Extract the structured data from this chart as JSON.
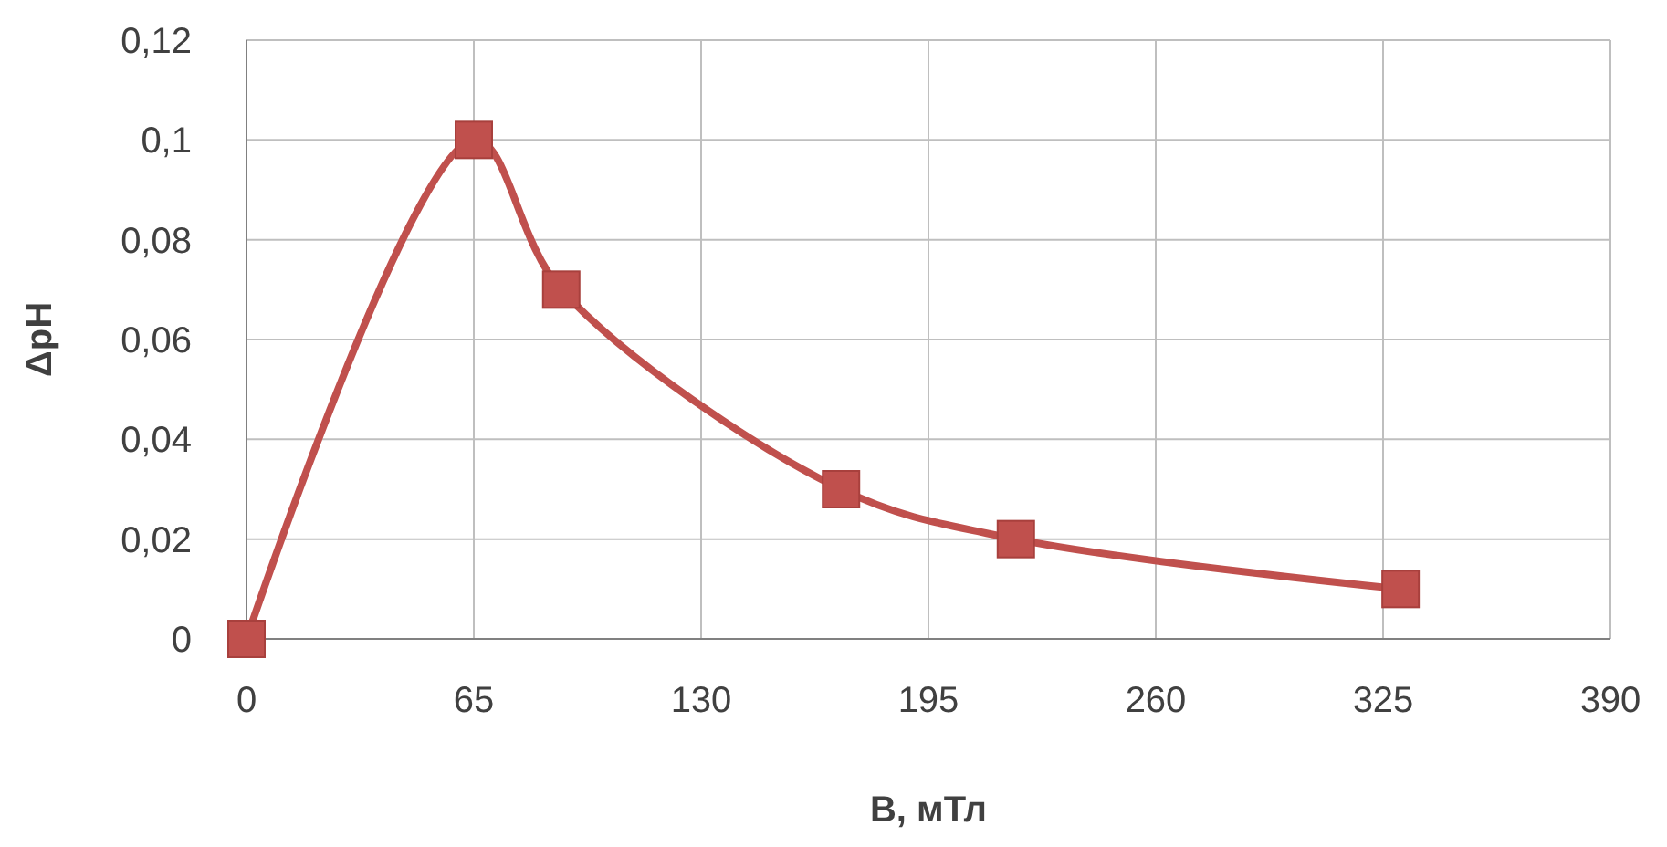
{
  "chart_data": {
    "type": "line",
    "xlabel": "B, мТл",
    "ylabel": "ΔpH",
    "x": [
      0,
      65,
      90,
      170,
      220,
      330
    ],
    "series": [
      {
        "color": "#c0504d",
        "values": [
          0,
          0.1,
          0.07,
          0.03,
          0.02,
          0.01
        ]
      }
    ],
    "xlim": [
      0,
      390
    ],
    "xticks": [
      0,
      65,
      130,
      195,
      260,
      325,
      390
    ],
    "ylim": [
      0,
      0.12
    ],
    "yticks": [
      0,
      {
        "value": 0.02,
        "label": "0,02"
      },
      {
        "value": 0.04,
        "label": "0,04"
      },
      {
        "value": 0.06,
        "label": "0,06"
      },
      {
        "value": 0.08,
        "label": "0,08"
      },
      {
        "value": 0.1,
        "label": "0,1"
      },
      {
        "value": 0.12,
        "label": "0,12"
      }
    ],
    "grid": true,
    "marker": "square",
    "line_style": "solid"
  }
}
